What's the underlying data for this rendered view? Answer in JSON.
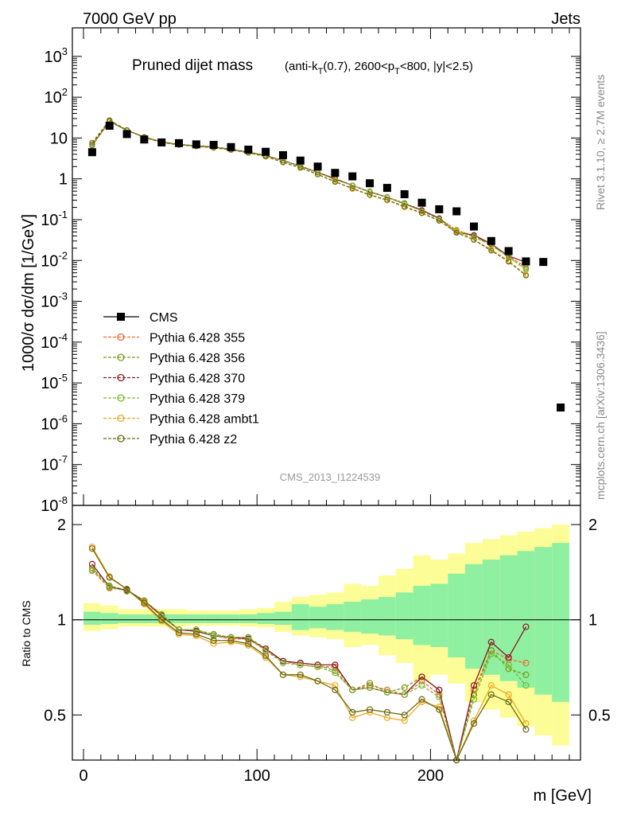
{
  "header": {
    "left": "7000 GeV pp",
    "right": "Jets"
  },
  "side_labels": {
    "rivet": "Rivet 3.1.10, ≥ 2.7M events",
    "mcplots": "mcplots.cern.ch [arXiv:1306.3436]"
  },
  "chart_data": [
    {
      "type": "scatter",
      "panel": "main",
      "title_main": "Pruned dijet mass",
      "title_sub": "(anti-k_T(0.7), 2600<p_T<800, |y|<2.5)",
      "ylabel": "1000/σ dσ/dm [1/GeV]",
      "yscale": "log",
      "ylim": [
        1e-08,
        5000
      ],
      "xlim": [
        -5,
        285
      ],
      "watermark": "CMS_2013_I1224539",
      "x": [
        5,
        15,
        25,
        35,
        45,
        55,
        65,
        75,
        85,
        95,
        105,
        115,
        125,
        135,
        145,
        155,
        165,
        175,
        185,
        195,
        205,
        215,
        225,
        235,
        245,
        255,
        265,
        275
      ],
      "legend": [
        {
          "name": "CMS",
          "color": "#000000",
          "marker": "square"
        },
        {
          "name": "Pythia 6.428 355",
          "color": "#f06a2a",
          "marker": "star"
        },
        {
          "name": "Pythia 6.428 356",
          "color": "#7a9a1a",
          "marker": "open-square"
        },
        {
          "name": "Pythia 6.428 370",
          "color": "#8b1a2a",
          "marker": "open-triangle"
        },
        {
          "name": "Pythia 6.428 379",
          "color": "#7ab830",
          "marker": "star"
        },
        {
          "name": "Pythia 6.428 ambt1",
          "color": "#f0a820",
          "marker": "open-triangle"
        },
        {
          "name": "Pythia 6.428 z2",
          "color": "#6b6b10",
          "marker": "dot"
        }
      ],
      "data_values": [
        4.5,
        20,
        12.5,
        9.2,
        7.8,
        7.5,
        7.0,
        6.8,
        6.0,
        5.2,
        4.6,
        3.8,
        2.8,
        2.0,
        1.4,
        1.15,
        0.78,
        0.6,
        0.42,
        0.26,
        0.18,
        0.16,
        0.068,
        0.03,
        0.017,
        0.0095,
        0.0092,
        2.5e-06
      ],
      "series_ratios": [
        {
          "name": "Pythia 6.428 355",
          "values": [
            1.43,
            1.26,
            1.24,
            1.14,
            1.03,
            0.93,
            0.92,
            0.89,
            0.87,
            0.87,
            0.8,
            0.74,
            0.72,
            0.71,
            0.71,
            0.6,
            0.62,
            0.6,
            0.58,
            0.64,
            0.58,
            0.34,
            0.6,
            0.8,
            0.75,
            0.73,
            null
          ]
        },
        {
          "name": "Pythia 6.428 356",
          "values": [
            1.46,
            1.28,
            1.24,
            1.15,
            1.04,
            0.93,
            0.93,
            0.9,
            0.88,
            0.88,
            0.81,
            0.74,
            0.73,
            0.72,
            0.69,
            0.6,
            0.63,
            0.59,
            0.61,
            0.66,
            0.6,
            0.35,
            0.58,
            0.8,
            0.7,
            0.67,
            null
          ]
        },
        {
          "name": "Pythia 6.428 370",
          "values": [
            1.5,
            1.27,
            1.24,
            1.15,
            1.03,
            0.93,
            0.92,
            0.89,
            0.88,
            0.87,
            0.81,
            0.74,
            0.73,
            0.72,
            0.72,
            0.6,
            0.61,
            0.59,
            0.58,
            0.66,
            0.6,
            0.3,
            0.62,
            0.85,
            0.76,
            0.95,
            null
          ]
        },
        {
          "name": "Pythia 6.428 379",
          "values": [
            1.44,
            1.27,
            1.23,
            1.15,
            1.04,
            0.93,
            0.93,
            0.89,
            0.88,
            0.88,
            0.8,
            0.73,
            0.72,
            0.71,
            0.68,
            0.6,
            0.61,
            0.59,
            0.58,
            0.62,
            0.57,
            0.32,
            0.56,
            0.78,
            0.72,
            0.62,
            null
          ]
        },
        {
          "name": "Pythia 6.428 ambt1",
          "values": [
            1.7,
            1.37,
            1.25,
            1.12,
            0.99,
            0.9,
            0.89,
            0.84,
            0.85,
            0.83,
            0.76,
            0.67,
            0.66,
            0.64,
            0.62,
            0.49,
            0.51,
            0.49,
            0.48,
            0.55,
            0.53,
            0.33,
            0.48,
            0.62,
            0.58,
            0.47,
            null
          ]
        },
        {
          "name": "Pythia 6.428 z2",
          "values": [
            1.68,
            1.36,
            1.25,
            1.13,
            1.0,
            0.91,
            0.9,
            0.86,
            0.86,
            0.84,
            0.77,
            0.67,
            0.67,
            0.64,
            0.6,
            0.51,
            0.52,
            0.51,
            0.5,
            0.56,
            0.52,
            0.3,
            0.47,
            0.58,
            0.55,
            0.45,
            null
          ]
        }
      ]
    },
    {
      "type": "line",
      "panel": "ratio",
      "ylabel": "Ratio to CMS",
      "xlabel": "m [GeV]",
      "ylim": [
        0.36,
        2.3
      ],
      "yscale": "log",
      "xlim": [
        -5,
        285
      ],
      "xticks": [
        0,
        100,
        200
      ],
      "yticks": [
        0.5,
        1,
        2
      ],
      "reference": 1.0,
      "band_bins": [
        0,
        10,
        20,
        30,
        40,
        50,
        60,
        70,
        80,
        90,
        100,
        110,
        120,
        130,
        140,
        150,
        160,
        170,
        180,
        190,
        200,
        210,
        220,
        230,
        240,
        250,
        260,
        270,
        280
      ],
      "band_stat": [
        0.06,
        0.05,
        0.04,
        0.04,
        0.04,
        0.04,
        0.04,
        0.04,
        0.04,
        0.04,
        0.05,
        0.06,
        0.12,
        0.1,
        0.12,
        0.14,
        0.16,
        0.18,
        0.22,
        0.28,
        0.3,
        0.4,
        0.5,
        0.55,
        0.6,
        0.65,
        0.7,
        0.75
      ],
      "band_total": [
        0.13,
        0.11,
        0.08,
        0.08,
        0.08,
        0.08,
        0.07,
        0.07,
        0.07,
        0.08,
        0.09,
        0.14,
        0.18,
        0.2,
        0.22,
        0.3,
        0.28,
        0.38,
        0.45,
        0.6,
        0.55,
        0.62,
        0.75,
        0.8,
        0.85,
        0.9,
        0.95,
        1.0
      ]
    }
  ]
}
